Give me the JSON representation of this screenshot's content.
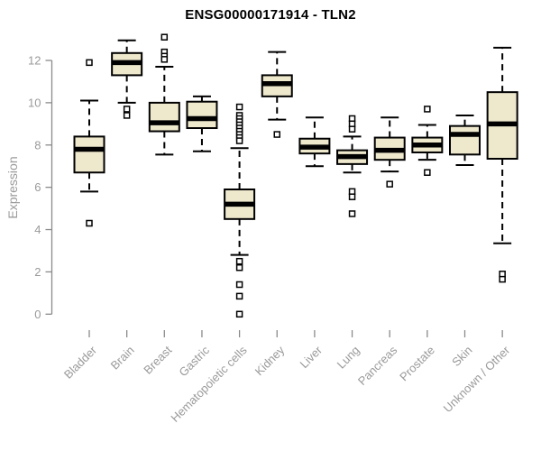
{
  "header": {
    "title": "ENSG00000171914 - TLN2"
  },
  "chart_data": {
    "type": "boxplot",
    "title": "ENSG00000171914 - TLN2",
    "xlabel": "",
    "ylabel": "Expression",
    "ylim": [
      0,
      12
    ],
    "yticks": [
      0,
      2,
      4,
      6,
      8,
      10,
      12
    ],
    "grid": false,
    "legend": false,
    "box_fill_color": "#EEE8CD",
    "box_border_color": "#000000",
    "median_color": "#000000",
    "axis_color": "#8a8a8a",
    "tick_label_color": "#9a9a9a",
    "categories": [
      "Bladder",
      "Brain",
      "Breast",
      "Gastric",
      "Hematopoietic cells",
      "Kidney",
      "Liver",
      "Lung",
      "Pancreas",
      "Prostate",
      "Skin",
      "Unknown / Other"
    ],
    "series": [
      {
        "name": "Bladder",
        "whisker_low": 5.8,
        "q1": 6.7,
        "median": 7.8,
        "q3": 8.4,
        "whisker_high": 10.1,
        "outliers": [
          11.9,
          4.3
        ]
      },
      {
        "name": "Brain",
        "whisker_low": 10.0,
        "q1": 11.3,
        "median": 11.9,
        "q3": 12.35,
        "whisker_high": 12.95,
        "outliers": [
          9.7,
          9.4
        ]
      },
      {
        "name": "Breast",
        "whisker_low": 7.55,
        "q1": 8.65,
        "median": 9.05,
        "q3": 10.0,
        "whisker_high": 11.7,
        "outliers": [
          13.1,
          12.4,
          12.2,
          12.05
        ]
      },
      {
        "name": "Gastric",
        "whisker_low": 7.7,
        "q1": 8.8,
        "median": 9.25,
        "q3": 10.05,
        "whisker_high": 10.3,
        "outliers": []
      },
      {
        "name": "Hematopoietic cells",
        "whisker_low": 2.8,
        "q1": 4.5,
        "median": 5.2,
        "q3": 5.9,
        "whisker_high": 7.85,
        "outliers": [
          9.8,
          9.4,
          9.25,
          9.1,
          8.95,
          8.8,
          8.65,
          8.5,
          8.35,
          8.2,
          2.5,
          2.2,
          1.4,
          0.85,
          0.0
        ]
      },
      {
        "name": "Kidney",
        "whisker_low": 9.2,
        "q1": 10.3,
        "median": 10.9,
        "q3": 11.3,
        "whisker_high": 12.4,
        "outliers": [
          8.5
        ]
      },
      {
        "name": "Liver",
        "whisker_low": 7.0,
        "q1": 7.6,
        "median": 7.9,
        "q3": 8.3,
        "whisker_high": 9.3,
        "outliers": []
      },
      {
        "name": "Lung",
        "whisker_low": 6.7,
        "q1": 7.1,
        "median": 7.45,
        "q3": 7.75,
        "whisker_high": 8.4,
        "outliers": [
          9.25,
          9.0,
          8.75,
          5.8,
          5.55,
          4.75
        ]
      },
      {
        "name": "Pancreas",
        "whisker_low": 6.75,
        "q1": 7.3,
        "median": 7.75,
        "q3": 8.35,
        "whisker_high": 9.3,
        "outliers": [
          6.15
        ]
      },
      {
        "name": "Prostate",
        "whisker_low": 7.3,
        "q1": 7.65,
        "median": 8.0,
        "q3": 8.35,
        "whisker_high": 8.95,
        "outliers": [
          9.7,
          6.7
        ]
      },
      {
        "name": "Skin",
        "whisker_low": 7.05,
        "q1": 7.55,
        "median": 8.5,
        "q3": 8.9,
        "whisker_high": 9.4,
        "outliers": []
      },
      {
        "name": "Unknown / Other",
        "whisker_low": 3.35,
        "q1": 7.35,
        "median": 9.0,
        "q3": 10.5,
        "whisker_high": 12.6,
        "outliers": [
          1.9,
          1.65
        ]
      }
    ]
  }
}
